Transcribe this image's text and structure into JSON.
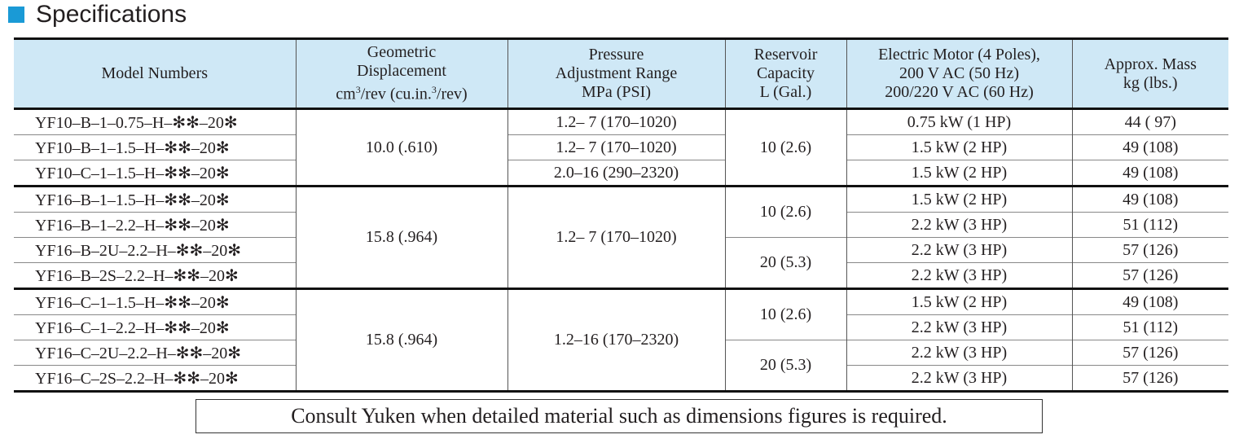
{
  "title": "Specifications",
  "table": {
    "header": {
      "model": [
        "Model Numbers"
      ],
      "displacement": [
        "Geometric",
        "Displacement"
      ],
      "displacement_unit": [
        "cm",
        "3",
        "/rev (cu.in.",
        "3",
        "/rev)"
      ],
      "pressure": [
        "Pressure",
        "Adjustment Range",
        "MPa (PSI)"
      ],
      "reservoir": [
        "Reservoir",
        "Capacity",
        "L (Gal.)"
      ],
      "motor": [
        "Electric Motor (4 Poles),",
        "200 V AC (50 Hz)",
        "200/220 V AC (60 Hz)"
      ],
      "mass": [
        "Approx. Mass",
        "kg (lbs.)"
      ]
    },
    "models": [
      "YF10–B–1–0.75–H–✻✻–20✻",
      "YF10–B–1–1.5–H–✻✻–20✻",
      "YF10–C–1–1.5–H–✻✻–20✻",
      "YF16–B–1–1.5–H–✻✻–20✻",
      "YF16–B–1–2.2–H–✻✻–20✻",
      "YF16–B–2U–2.2–H–✻✻–20✻",
      "YF16–B–2S–2.2–H–✻✻–20✻",
      "YF16–C–1–1.5–H–✻✻–20✻",
      "YF16–C–1–2.2–H–✻✻–20✻",
      "YF16–C–2U–2.2–H–✻✻–20✻",
      "YF16–C–2S–2.2–H–✻✻–20✻"
    ],
    "displacements": [
      "10.0 (.610)",
      "15.8 (.964)",
      "15.8 (.964)"
    ],
    "pressures": [
      "1.2– 7 (170–1020)",
      "1.2– 7 (170–1020)",
      "2.0–16 (290–2320)",
      "1.2– 7 (170–1020)",
      "1.2–16 (170–2320)"
    ],
    "reservoirs": [
      "10 (2.6)",
      "10 (2.6)",
      "20 (5.3)",
      "10 (2.6)",
      "20 (5.3)"
    ],
    "motors": [
      "0.75 kW (1 HP)",
      "1.5 kW (2 HP)",
      "1.5 kW (2 HP)",
      "1.5 kW (2 HP)",
      "2.2 kW (3 HP)",
      "2.2 kW (3 HP)",
      "2.2 kW (3 HP)",
      "1.5 kW (2 HP)",
      "2.2 kW (3 HP)",
      "2.2 kW (3 HP)",
      "2.2 kW (3 HP)"
    ],
    "masses": [
      "44 ( 97)",
      "49 (108)",
      "49 (108)",
      "49 (108)",
      "51 (112)",
      "57 (126)",
      "57 (126)",
      "49 (108)",
      "51 (112)",
      "57 (126)",
      "57 (126)"
    ]
  },
  "note": "Consult Yuken when detailed material such as dimensions figures is required."
}
